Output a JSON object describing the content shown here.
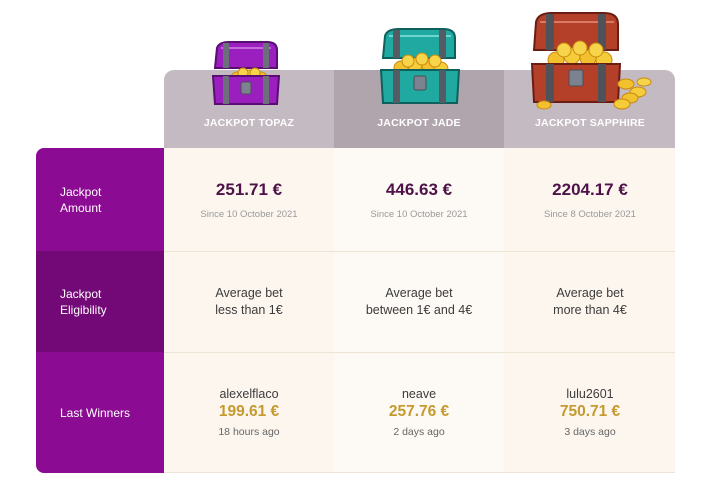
{
  "jackpots": [
    {
      "name": "JACKPOT TOPAZ",
      "amount": "251.71 €",
      "since": "Since 10 October 2021",
      "eligibility": [
        "Average bet",
        "less than 1€"
      ],
      "winner": "alexelflaco",
      "win_amount": "199.61 €",
      "win_ago": "18 hours ago",
      "chest_color": "#9b1fbf",
      "chest_icon": "treasure-chest-icon"
    },
    {
      "name": "JACKPOT JADE",
      "amount": "446.63 €",
      "since": "Since 10 October 2021",
      "eligibility": [
        "Average bet",
        "between 1€ and 4€"
      ],
      "winner": "neave",
      "win_amount": "257.76 €",
      "win_ago": "2 days ago",
      "chest_color": "#1fa9a0",
      "chest_icon": "treasure-chest-icon"
    },
    {
      "name": "JACKPOT SAPPHIRE",
      "amount": "2204.17 €",
      "since": "Since 8 October 2021",
      "eligibility": [
        "Average bet",
        "more than 4€"
      ],
      "winner": "lulu2601",
      "win_amount": "750.71 €",
      "win_ago": "3 days ago",
      "chest_color": "#b5402a",
      "chest_icon": "treasure-chest-icon"
    }
  ],
  "row_labels": {
    "amount": [
      "Jackpot",
      "Amount"
    ],
    "eligibility": [
      "Jackpot",
      "Eligibility"
    ],
    "winners": "Last Winners"
  },
  "colors": {
    "side_panel": "#8c0b93",
    "side_panel_dark": "#730977",
    "header": "#c4bac1",
    "amount_text": "#4d1248",
    "gold": "#c49a2f"
  }
}
